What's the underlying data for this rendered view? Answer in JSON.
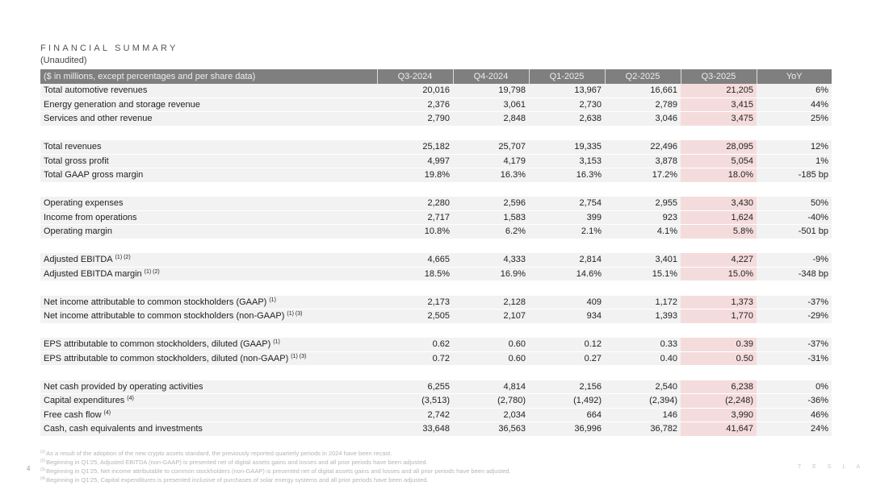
{
  "header": {
    "title": "FINANCIAL SUMMARY",
    "subtitle": "(Unaudited)"
  },
  "table": {
    "columns": [
      "($ in millions, except percentages and per share data)",
      "Q3-2024",
      "Q4-2024",
      "Q1-2025",
      "Q2-2025",
      "Q3-2025",
      "YoY"
    ],
    "highlight_color": "#f5dcdc",
    "groups": [
      [
        {
          "label": "Total automotive revenues",
          "note": "",
          "values": [
            "20,016",
            "19,798",
            "13,967",
            "16,661",
            "21,205",
            "6%"
          ]
        },
        {
          "label": "Energy generation and storage revenue",
          "note": "",
          "values": [
            "2,376",
            "3,061",
            "2,730",
            "2,789",
            "3,415",
            "44%"
          ]
        },
        {
          "label": "Services and other revenue",
          "note": "",
          "values": [
            "2,790",
            "2,848",
            "2,638",
            "3,046",
            "3,475",
            "25%"
          ]
        }
      ],
      [
        {
          "label": "Total revenues",
          "note": "",
          "values": [
            "25,182",
            "25,707",
            "19,335",
            "22,496",
            "28,095",
            "12%"
          ]
        },
        {
          "label": "Total gross profit",
          "note": "",
          "values": [
            "4,997",
            "4,179",
            "3,153",
            "3,878",
            "5,054",
            "1%"
          ]
        },
        {
          "label": "Total GAAP gross margin",
          "note": "",
          "values": [
            "19.8%",
            "16.3%",
            "16.3%",
            "17.2%",
            "18.0%",
            "-185 bp"
          ]
        }
      ],
      [
        {
          "label": "Operating expenses",
          "note": "",
          "values": [
            "2,280",
            "2,596",
            "2,754",
            "2,955",
            "3,430",
            "50%"
          ]
        },
        {
          "label": "Income from operations",
          "note": "",
          "values": [
            "2,717",
            "1,583",
            "399",
            "923",
            "1,624",
            "-40%"
          ]
        },
        {
          "label": "Operating margin",
          "note": "",
          "values": [
            "10.8%",
            "6.2%",
            "2.1%",
            "4.1%",
            "5.8%",
            "-501 bp"
          ]
        }
      ],
      [
        {
          "label": "Adjusted EBITDA",
          "note": "(1) (2)",
          "values": [
            "4,665",
            "4,333",
            "2,814",
            "3,401",
            "4,227",
            "-9%"
          ]
        },
        {
          "label": "Adjusted EBITDA margin",
          "note": "(1) (2)",
          "values": [
            "18.5%",
            "16.9%",
            "14.6%",
            "15.1%",
            "15.0%",
            "-348 bp"
          ]
        }
      ],
      [
        {
          "label": "Net income attributable to common stockholders (GAAP)",
          "note": "(1)",
          "values": [
            "2,173",
            "2,128",
            "409",
            "1,172",
            "1,373",
            "-37%"
          ]
        },
        {
          "label": "Net income attributable to common stockholders (non-GAAP)",
          "note": "(1) (3)",
          "values": [
            "2,505",
            "2,107",
            "934",
            "1,393",
            "1,770",
            "-29%"
          ]
        }
      ],
      [
        {
          "label": "EPS attributable to common stockholders, diluted (GAAP)",
          "note": "(1)",
          "values": [
            "0.62",
            "0.60",
            "0.12",
            "0.33",
            "0.39",
            "-37%"
          ]
        },
        {
          "label": "EPS attributable to common stockholders, diluted (non-GAAP)",
          "note": "(1) (3)",
          "values": [
            "0.72",
            "0.60",
            "0.27",
            "0.40",
            "0.50",
            "-31%"
          ]
        }
      ],
      [
        {
          "label": "Net cash provided by operating activities",
          "note": "",
          "values": [
            "6,255",
            "4,814",
            "2,156",
            "2,540",
            "6,238",
            "0%"
          ]
        },
        {
          "label": "Capital expenditures",
          "note": "(4)",
          "values": [
            "(3,513)",
            "(2,780)",
            "(1,492)",
            "(2,394)",
            "(2,248)",
            "-36%"
          ]
        },
        {
          "label": "Free cash flow",
          "note": "(4)",
          "values": [
            "2,742",
            "2,034",
            "664",
            "146",
            "3,990",
            "46%"
          ]
        },
        {
          "label": "Cash, cash equivalents and investments",
          "note": "",
          "values": [
            "33,648",
            "36,563",
            "36,996",
            "36,782",
            "41,647",
            "24%"
          ]
        }
      ]
    ]
  },
  "footnotes": [
    {
      "mark": "(1)",
      "text": "As a result of the adoption of the new crypto assets standard, the previously reported quarterly periods in 2024 have been recast."
    },
    {
      "mark": "(2)",
      "text": "Beginning in Q1'25, Adjusted EBITDA (non-GAAP) is presented net of digital assets gains and losses and all prior periods have been adjusted."
    },
    {
      "mark": "(3)",
      "text": "Beginning in Q1'25, Net income attributable to common stockholders (non-GAAP) is presented net of digital assets gains and losses and all prior periods have been adjusted."
    },
    {
      "mark": "(4)",
      "text": "Beginning in Q1'25, Capital expenditures is presented inclusive of purchases of solar energy systems and all prior periods have been adjusted."
    }
  ],
  "page_number": "4",
  "logo": "TESLA"
}
